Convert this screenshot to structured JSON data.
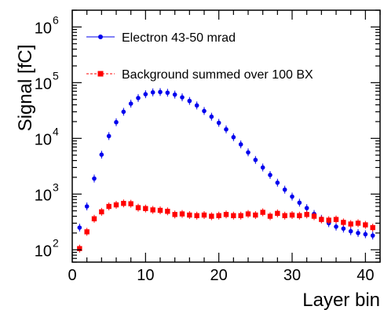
{
  "chart_data": {
    "type": "scatter",
    "xlabel": "Layer bin",
    "ylabel": "Signal [fC]",
    "yscale": "log",
    "xlim": [
      0,
      42
    ],
    "ylim": [
      60,
      2000000
    ],
    "xticks": [
      0,
      10,
      20,
      30,
      40
    ],
    "x_tick_labels": [
      "0",
      "10",
      "20",
      "30",
      "40"
    ],
    "yticks": [
      100,
      1000,
      10000,
      100000,
      1000000
    ],
    "y_tick_labels": [
      {
        "base": "10",
        "exp": "2"
      },
      {
        "base": "10",
        "exp": "3"
      },
      {
        "base": "10",
        "exp": "4"
      },
      {
        "base": "10",
        "exp": "5"
      },
      {
        "base": "10",
        "exp": "6"
      }
    ],
    "grid": false,
    "legend_position": "top",
    "series": [
      {
        "name": "Electron 43-50 mrad",
        "color": "#0000ee",
        "marker": "circle",
        "linestyle": "solid",
        "x": [
          1,
          2,
          3,
          4,
          5,
          6,
          7,
          8,
          9,
          10,
          11,
          12,
          13,
          14,
          15,
          16,
          17,
          18,
          19,
          20,
          21,
          22,
          23,
          24,
          25,
          26,
          27,
          28,
          29,
          30,
          31,
          32,
          33,
          34,
          35,
          36,
          37,
          38,
          39,
          40,
          41
        ],
        "y": [
          250,
          600,
          1900,
          5100,
          11000,
          19500,
          30000,
          42000,
          53000,
          62000,
          67000,
          68000,
          66000,
          61000,
          54500,
          47000,
          39000,
          31000,
          24500,
          19000,
          14500,
          10500,
          7800,
          5600,
          4100,
          3000,
          2200,
          1600,
          1200,
          900,
          700,
          560,
          440,
          360,
          300,
          260,
          240,
          215,
          200,
          190,
          180
        ]
      },
      {
        "name": "Background summed over 100 BX",
        "color": "#ff0000",
        "marker": "square",
        "linestyle": "dashed",
        "x": [
          1,
          2,
          3,
          4,
          5,
          6,
          7,
          8,
          9,
          10,
          11,
          12,
          13,
          14,
          15,
          16,
          17,
          18,
          19,
          20,
          21,
          22,
          23,
          24,
          25,
          26,
          27,
          28,
          29,
          30,
          31,
          32,
          33,
          34,
          35,
          36,
          37,
          38,
          39,
          40,
          41
        ],
        "y": [
          105,
          210,
          360,
          480,
          600,
          640,
          680,
          670,
          570,
          550,
          520,
          510,
          490,
          430,
          440,
          420,
          410,
          420,
          400,
          410,
          430,
          410,
          410,
          440,
          420,
          470,
          400,
          450,
          410,
          420,
          410,
          430,
          400,
          350,
          340,
          350,
          310,
          290,
          300,
          280,
          250
        ]
      }
    ]
  }
}
